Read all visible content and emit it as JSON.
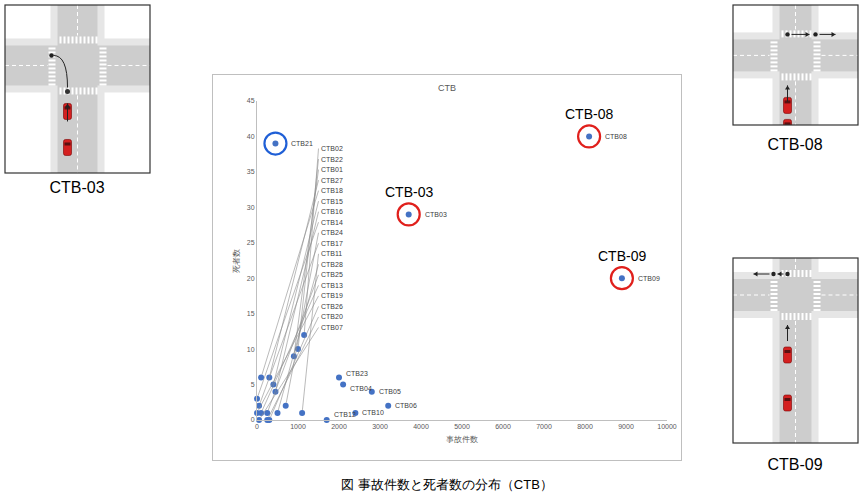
{
  "chart_data": {
    "type": "scatter",
    "title": "CTB",
    "x_label": "事故件数",
    "y_label": "死者数",
    "xlim": [
      0,
      10000
    ],
    "xticks": [
      0,
      1000,
      2000,
      3000,
      4000,
      5000,
      6000,
      7000,
      8000,
      9000,
      10000
    ],
    "ylim": [
      0,
      45
    ],
    "yticks": [
      0,
      5,
      10,
      15,
      20,
      25,
      30,
      35,
      40,
      45
    ],
    "grid": false,
    "series": [
      {
        "marker": "circle",
        "color": "#4472c4",
        "labels": [
          "CTB01",
          "CTB02",
          "CTB03",
          "CTB04",
          "CTB05",
          "CTB06",
          "CTB07",
          "CTB08",
          "CTB09",
          "CTB10",
          "CTB11",
          "CTB12",
          "CTB13",
          "CTB14",
          "CTB15",
          "CTB16",
          "CTB17",
          "CTB18",
          "CTB19",
          "CTB20",
          "CTB21",
          "CTB22",
          "CTB23",
          "CTB24",
          "CTB25",
          "CTB26",
          "CTB27",
          "CTB28"
        ],
        "x": [
          900,
          1150,
          3700,
          2100,
          2800,
          3200,
          50,
          8100,
          8900,
          2400,
          1100,
          1700,
          100,
          0,
          400,
          450,
          50,
          100,
          0,
          250,
          450,
          1000,
          2000,
          700,
          250,
          300,
          300,
          500
        ],
        "y": [
          9,
          12,
          29,
          5,
          4,
          2,
          0,
          40,
          20,
          1,
          1,
          0,
          1,
          3,
          5,
          4,
          2,
          6,
          1,
          0,
          39,
          10,
          6,
          2,
          1,
          0,
          6,
          1
        ]
      },
      {
        "marker": "circle-open",
        "color": "#e0201c",
        "labels": [
          "CTB-03",
          "CTB-08",
          "CTB-09"
        ],
        "x": [
          3700,
          8100,
          8900
        ],
        "y": [
          29,
          40,
          20
        ]
      },
      {
        "marker": "circle-open",
        "color": "#1f5fd6",
        "x": [
          450
        ],
        "y": [
          39
        ]
      }
    ]
  },
  "panels": [
    {
      "label": "CTB-03"
    },
    {
      "label": "CTB-08"
    },
    {
      "label": "CTB-09"
    }
  ],
  "caption": "図 事故件数と死者数の分布（CTB）"
}
